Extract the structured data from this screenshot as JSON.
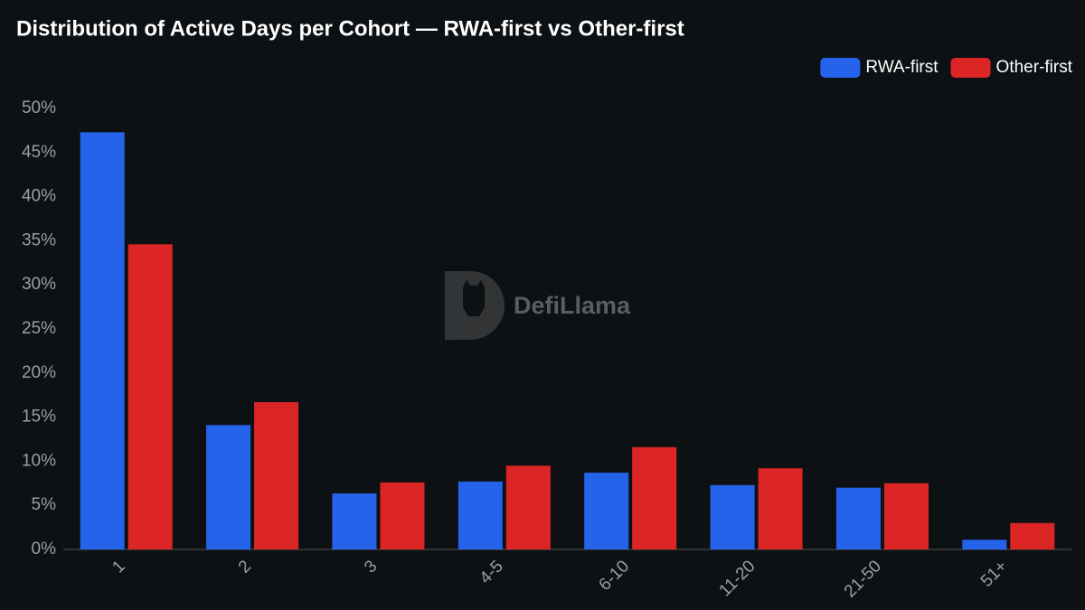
{
  "chart_data": {
    "type": "bar",
    "title": "Distribution of Active Days per Cohort — RWA-first vs Other-first",
    "categories": [
      "1",
      "2",
      "3",
      "4-5",
      "6-10",
      "11-20",
      "21-50",
      "51+"
    ],
    "series": [
      {
        "name": "RWA-first",
        "color": "#2563eb",
        "values": [
          47.3,
          14.1,
          6.35,
          7.7,
          8.7,
          7.3,
          7.0,
          1.1
        ]
      },
      {
        "name": "Other-first",
        "color": "#dc2626",
        "values": [
          34.6,
          16.7,
          7.6,
          9.5,
          11.6,
          9.2,
          7.5,
          3.0
        ]
      }
    ],
    "ylim": [
      0,
      50
    ],
    "yticks": [
      {
        "value": 0,
        "label": "0%"
      },
      {
        "value": 5,
        "label": "5%"
      },
      {
        "value": 10,
        "label": "10%"
      },
      {
        "value": 15,
        "label": "15%"
      },
      {
        "value": 20,
        "label": "20%"
      },
      {
        "value": 25,
        "label": "25%"
      },
      {
        "value": 30,
        "label": "30%"
      },
      {
        "value": 35,
        "label": "35%"
      },
      {
        "value": 40,
        "label": "40%"
      },
      {
        "value": 45,
        "label": "45%"
      },
      {
        "value": 50,
        "label": "50%"
      }
    ],
    "grid": false,
    "legend": "top-right",
    "watermark": "DefiLlama"
  }
}
